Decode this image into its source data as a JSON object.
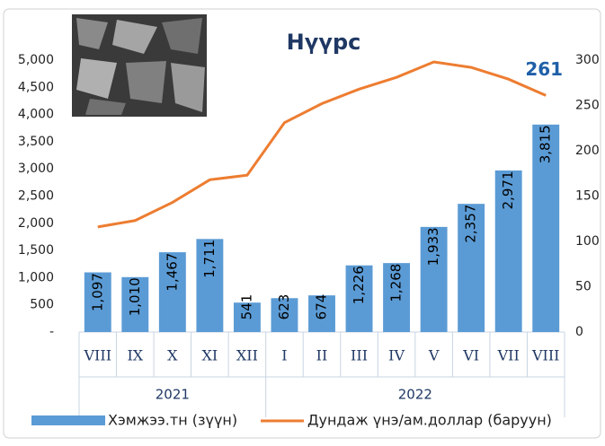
{
  "chart_data": {
    "type": "bar-line",
    "title": "Нүүрс",
    "groups": [
      {
        "name": "2021",
        "categories": [
          "VIII",
          "IX",
          "X",
          "XI",
          "XII"
        ]
      },
      {
        "name": "2022",
        "categories": [
          "I",
          "II",
          "III",
          "IV",
          "V",
          "VI",
          "VII",
          "VIII"
        ]
      }
    ],
    "series": [
      {
        "name": "Хэмжээ.тн (зүүн)",
        "type": "bar",
        "color": "#5b9bd5",
        "values": [
          1097,
          1010,
          1467,
          1711,
          541,
          623,
          674,
          1226,
          1268,
          1933,
          2357,
          2971,
          3815
        ],
        "value_labels": [
          "1,097",
          "1,010",
          "1,467",
          "1,711",
          "541",
          "623",
          "674",
          "1,226",
          "1,268",
          "1,933",
          "2,357",
          "2,971",
          "3,815"
        ]
      },
      {
        "name": "Дундаж үнэ/ам.доллар (баруун)",
        "type": "line",
        "color": "#ed7d31",
        "axis": "y2",
        "values": [
          116,
          123,
          143,
          168,
          173,
          231,
          252,
          268,
          281,
          298,
          292,
          279,
          261
        ]
      }
    ],
    "ylim": [
      0,
      5000
    ],
    "yticks": [
      {
        "value": 0,
        "label": "-"
      },
      500,
      {
        "value": 1000,
        "label": "1,000"
      },
      {
        "value": 1500,
        "label": "1,500"
      },
      {
        "value": 2000,
        "label": "2,000"
      },
      {
        "value": 2500,
        "label": "2,500"
      },
      {
        "value": 3000,
        "label": "3,000"
      },
      {
        "value": 3500,
        "label": "3,500"
      },
      {
        "value": 4000,
        "label": "4,000"
      },
      {
        "value": 4500,
        "label": "4,500"
      },
      {
        "value": 5000,
        "label": "5,000"
      }
    ],
    "y2lim": [
      0,
      300
    ],
    "y2ticks": [
      0,
      50,
      100,
      150,
      200,
      250,
      300
    ],
    "legend": "bottom",
    "grid": false
  }
}
